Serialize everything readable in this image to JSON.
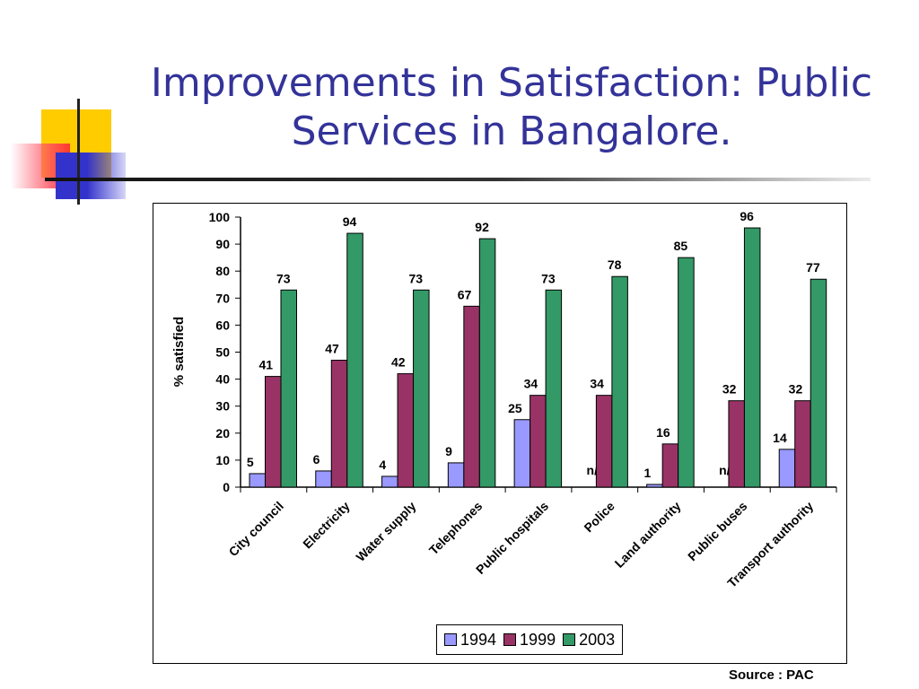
{
  "slide": {
    "title_line1": "Improvements in Satisfaction:  Public",
    "title_line2": "Services in Bangalore.",
    "source": "Source : PAC"
  },
  "colors": {
    "title": "#333399",
    "series_1994": "#9999ff",
    "series_1999": "#993366",
    "series_2003": "#339966"
  },
  "chart_data": {
    "type": "bar",
    "title": "",
    "xlabel": "",
    "ylabel": "% satisfied",
    "ylim": [
      0,
      100
    ],
    "yticks": [
      0,
      10,
      20,
      30,
      40,
      50,
      60,
      70,
      80,
      90,
      100
    ],
    "grid": false,
    "legend_position": "bottom",
    "categories": [
      "City council",
      "Electricity",
      "Water supply",
      "Telephones",
      "Public hospitals",
      "Police",
      "Land authority",
      "Public buses",
      "Transport authority"
    ],
    "series": [
      {
        "name": "1994",
        "values": [
          5,
          6,
          4,
          9,
          25,
          null,
          1,
          null,
          14
        ],
        "labels": [
          "5",
          "6",
          "4",
          "9",
          "25",
          "n/a",
          "1",
          "n/a",
          "14"
        ]
      },
      {
        "name": "1999",
        "values": [
          41,
          47,
          42,
          67,
          34,
          34,
          16,
          32,
          32
        ],
        "labels": [
          "41",
          "47",
          "42",
          "67",
          "34",
          "34",
          "16",
          "32",
          "32"
        ]
      },
      {
        "name": "2003",
        "values": [
          73,
          94,
          73,
          92,
          73,
          78,
          85,
          96,
          77
        ],
        "labels": [
          "73",
          "94",
          "73",
          "92",
          "73",
          "78",
          "85",
          "96",
          "77"
        ]
      }
    ]
  }
}
